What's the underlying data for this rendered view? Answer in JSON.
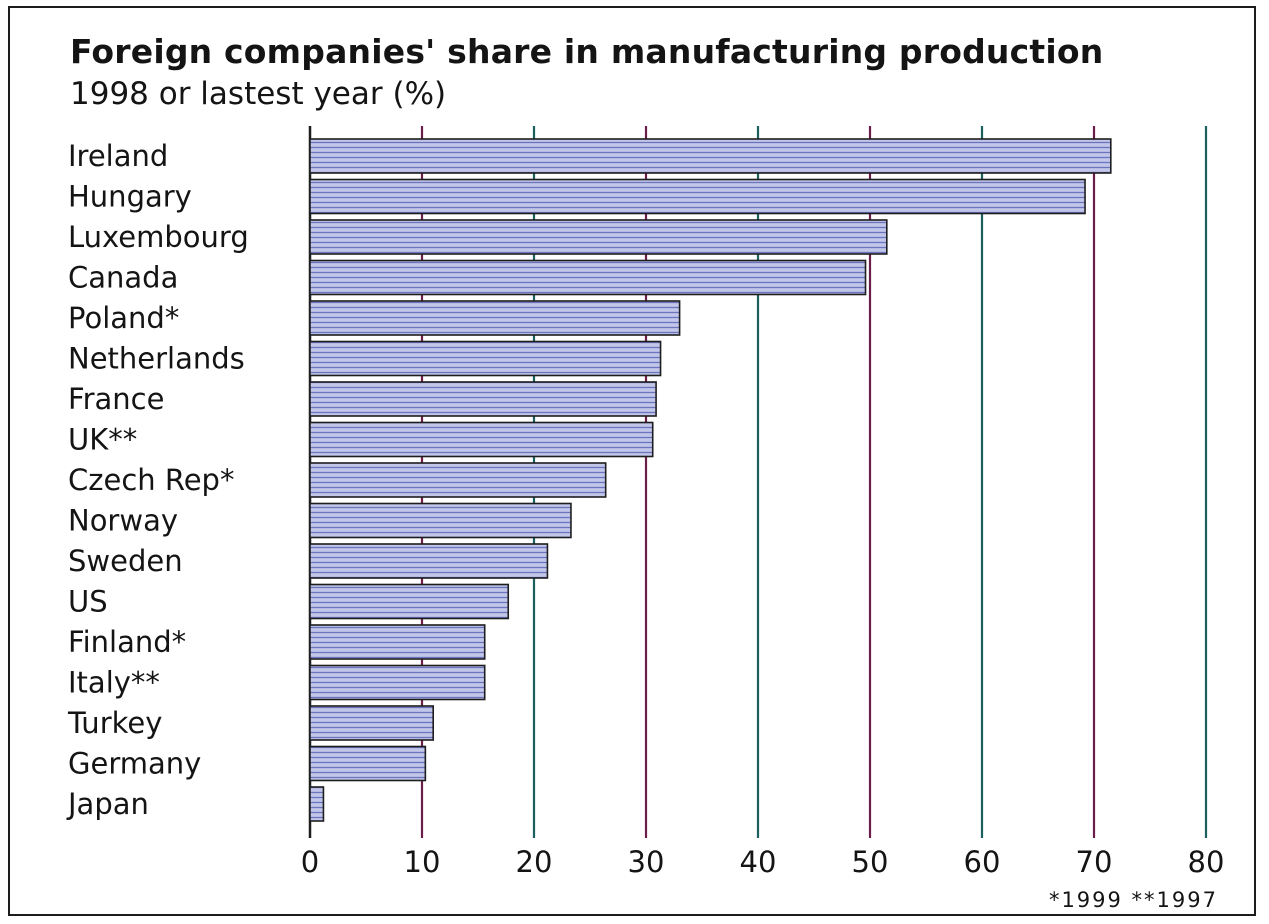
{
  "chart_data": {
    "type": "bar",
    "orientation": "horizontal",
    "title": "Foreign companies' share in manufacturing production",
    "subtitle": "1998 or lastest year (%)",
    "categories": [
      "Ireland",
      "Hungary",
      "Luxembourg",
      "Canada",
      "Poland*",
      "Netherlands",
      "France",
      "UK**",
      "Czech Rep*",
      "Norway",
      "Sweden",
      "US",
      "Finland*",
      "Italy**",
      "Turkey",
      "Germany",
      "Japan"
    ],
    "values": [
      71.5,
      69.2,
      51.5,
      49.6,
      33.0,
      31.3,
      30.9,
      30.6,
      26.4,
      23.3,
      21.2,
      17.7,
      15.6,
      15.6,
      11.0,
      10.3,
      1.2
    ],
    "xlim": [
      0,
      80
    ],
    "xticks": [
      "0",
      "10",
      "20",
      "30",
      "40",
      "50",
      "60",
      "70",
      "80"
    ],
    "xlabel": "",
    "ylabel": "",
    "grid": true,
    "footnote": "*1999 **1997",
    "colors": {
      "bar_fill": "#c2c7ea",
      "bar_stripe": "#6b74bd",
      "bar_edge": "#1e1e1e",
      "grid_dark": "#6a1f4a",
      "grid_teal": "#1c5f5f",
      "text": "#141414"
    }
  }
}
